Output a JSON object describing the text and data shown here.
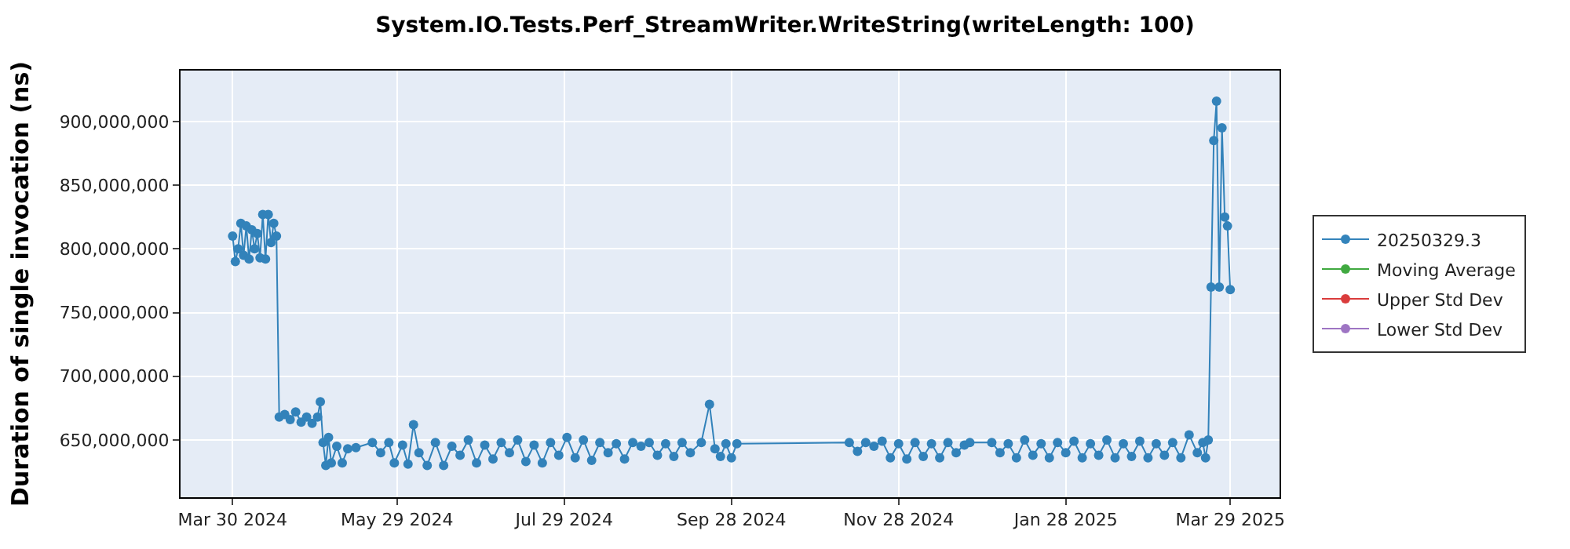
{
  "chart_data": {
    "type": "line",
    "title": "System.IO.Tests.Perf_StreamWriter.WriteString(writeLength: 100)",
    "ylabel": "Duration of single invocation (ns)",
    "xlim": [
      "2024-03-11",
      "2025-04-16"
    ],
    "xticks": [
      {
        "value": "2024-03-30",
        "label": "Mar 30 2024"
      },
      {
        "value": "2024-05-29",
        "label": "May 29 2024"
      },
      {
        "value": "2024-07-29",
        "label": "Jul 29 2024"
      },
      {
        "value": "2024-09-28",
        "label": "Sep 28 2024"
      },
      {
        "value": "2024-11-28",
        "label": "Nov 28 2024"
      },
      {
        "value": "2025-01-28",
        "label": "Jan 28 2025"
      },
      {
        "value": "2025-03-29",
        "label": "Mar 29 2025"
      }
    ],
    "ylim": [
      605000000,
      940000000
    ],
    "yticks": [
      {
        "value": 650000000,
        "label": "650,000,000"
      },
      {
        "value": 700000000,
        "label": "700,000,000"
      },
      {
        "value": 750000000,
        "label": "750,000,000"
      },
      {
        "value": 800000000,
        "label": "800,000,000"
      },
      {
        "value": 850000000,
        "label": "850,000,000"
      },
      {
        "value": 900000000,
        "label": "900,000,000"
      }
    ],
    "grid": true,
    "legend": "right",
    "marker": "circle",
    "line_style": "solid",
    "series": [
      {
        "name": "20250329.3",
        "color": "#1f77b4",
        "x": [
          "2024-03-30",
          "2024-03-31",
          "2024-04-01",
          "2024-04-02",
          "2024-04-03",
          "2024-04-04",
          "2024-04-05",
          "2024-04-06",
          "2024-04-07",
          "2024-04-08",
          "2024-04-09",
          "2024-04-10",
          "2024-04-11",
          "2024-04-12",
          "2024-04-13",
          "2024-04-14",
          "2024-04-15",
          "2024-04-16",
          "2024-04-18",
          "2024-04-20",
          "2024-04-22",
          "2024-04-24",
          "2024-04-26",
          "2024-04-28",
          "2024-04-30",
          "2024-05-01",
          "2024-05-02",
          "2024-05-03",
          "2024-05-04",
          "2024-05-05",
          "2024-05-07",
          "2024-05-09",
          "2024-05-11",
          "2024-05-14",
          "2024-05-20",
          "2024-05-23",
          "2024-05-26",
          "2024-05-28",
          "2024-05-31",
          "2024-06-02",
          "2024-06-04",
          "2024-06-06",
          "2024-06-09",
          "2024-06-12",
          "2024-06-15",
          "2024-06-18",
          "2024-06-21",
          "2024-06-24",
          "2024-06-27",
          "2024-06-30",
          "2024-07-03",
          "2024-07-06",
          "2024-07-09",
          "2024-07-12",
          "2024-07-15",
          "2024-07-18",
          "2024-07-21",
          "2024-07-24",
          "2024-07-27",
          "2024-07-30",
          "2024-08-02",
          "2024-08-05",
          "2024-08-08",
          "2024-08-11",
          "2024-08-14",
          "2024-08-17",
          "2024-08-20",
          "2024-08-23",
          "2024-08-26",
          "2024-08-29",
          "2024-09-01",
          "2024-09-04",
          "2024-09-07",
          "2024-09-10",
          "2024-09-13",
          "2024-09-17",
          "2024-09-20",
          "2024-09-22",
          "2024-09-24",
          "2024-09-26",
          "2024-09-28",
          "2024-09-30",
          "2024-11-10",
          "2024-11-13",
          "2024-11-16",
          "2024-11-19",
          "2024-11-22",
          "2024-11-25",
          "2024-11-28",
          "2024-12-01",
          "2024-12-04",
          "2024-12-07",
          "2024-12-10",
          "2024-12-13",
          "2024-12-16",
          "2024-12-19",
          "2024-12-22",
          "2024-12-24",
          "2025-01-01",
          "2025-01-04",
          "2025-01-07",
          "2025-01-10",
          "2025-01-13",
          "2025-01-16",
          "2025-01-19",
          "2025-01-22",
          "2025-01-25",
          "2025-01-28",
          "2025-01-31",
          "2025-02-03",
          "2025-02-06",
          "2025-02-09",
          "2025-02-12",
          "2025-02-15",
          "2025-02-18",
          "2025-02-21",
          "2025-02-24",
          "2025-02-27",
          "2025-03-02",
          "2025-03-05",
          "2025-03-08",
          "2025-03-11",
          "2025-03-14",
          "2025-03-17",
          "2025-03-19",
          "2025-03-20",
          "2025-03-21",
          "2025-03-22",
          "2025-03-23",
          "2025-03-24",
          "2025-03-25",
          "2025-03-26",
          "2025-03-27",
          "2025-03-28",
          "2025-03-29"
        ],
        "values": [
          810000000,
          790000000,
          800000000,
          820000000,
          795000000,
          818000000,
          792000000,
          815000000,
          800000000,
          812000000,
          793000000,
          827000000,
          792000000,
          827000000,
          805000000,
          820000000,
          810000000,
          668000000,
          670000000,
          666000000,
          672000000,
          664000000,
          668000000,
          663000000,
          668000000,
          680000000,
          648000000,
          630000000,
          652000000,
          632000000,
          645000000,
          632000000,
          643000000,
          644000000,
          648000000,
          640000000,
          648000000,
          632000000,
          646000000,
          631000000,
          662000000,
          640000000,
          630000000,
          648000000,
          630000000,
          645000000,
          638000000,
          650000000,
          632000000,
          646000000,
          635000000,
          648000000,
          640000000,
          650000000,
          633000000,
          646000000,
          632000000,
          648000000,
          638000000,
          652000000,
          636000000,
          650000000,
          634000000,
          648000000,
          640000000,
          647000000,
          635000000,
          648000000,
          645000000,
          648000000,
          638000000,
          647000000,
          637000000,
          648000000,
          640000000,
          648000000,
          678000000,
          643000000,
          637000000,
          647000000,
          636000000,
          647000000,
          648000000,
          641000000,
          648000000,
          645000000,
          649000000,
          636000000,
          647000000,
          635000000,
          648000000,
          637000000,
          647000000,
          636000000,
          648000000,
          640000000,
          646000000,
          648000000,
          648000000,
          640000000,
          647000000,
          636000000,
          650000000,
          638000000,
          647000000,
          636000000,
          648000000,
          640000000,
          649000000,
          636000000,
          647000000,
          638000000,
          650000000,
          636000000,
          647000000,
          637000000,
          649000000,
          636000000,
          647000000,
          638000000,
          648000000,
          636000000,
          654000000,
          640000000,
          648000000,
          636000000,
          650000000,
          770000000,
          885000000,
          916000000,
          770000000,
          895000000,
          825000000,
          818000000,
          768000000
        ]
      },
      {
        "name": "Moving Average",
        "color": "#2ca02c"
      },
      {
        "name": "Upper Std Dev",
        "color": "#d62728"
      },
      {
        "name": "Lower Std Dev",
        "color": "#9467bd"
      }
    ]
  }
}
